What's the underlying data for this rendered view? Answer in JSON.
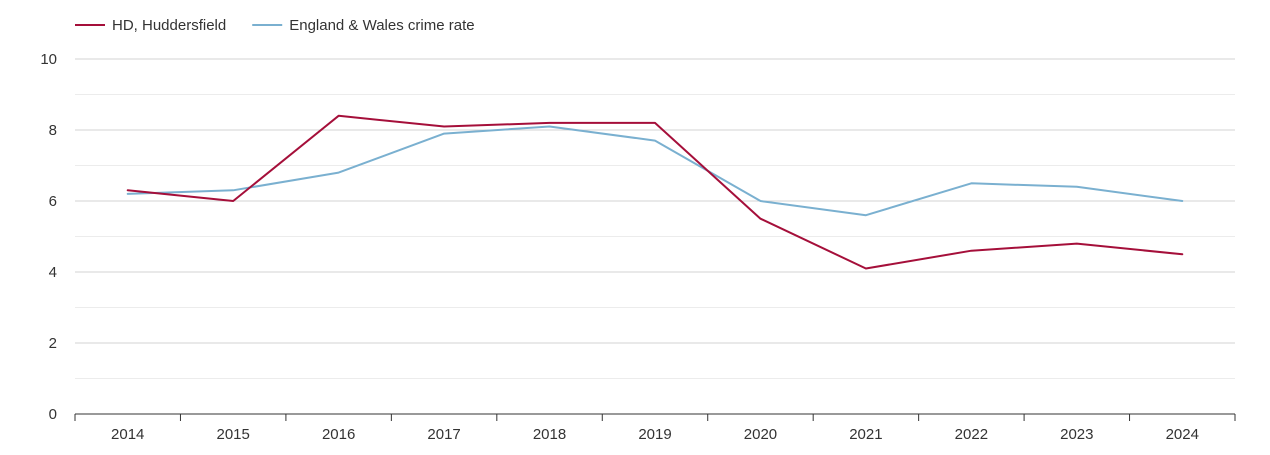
{
  "chart_data": {
    "type": "line",
    "title": "",
    "xlabel": "",
    "ylabel": "",
    "categories": [
      "2014",
      "2015",
      "2016",
      "2017",
      "2018",
      "2019",
      "2020",
      "2021",
      "2022",
      "2023",
      "2024"
    ],
    "ylim": [
      0,
      10
    ],
    "yticks": [
      "0",
      "2",
      "4",
      "6",
      "8",
      "10"
    ],
    "grid": true,
    "legend_position": "top-left",
    "series": [
      {
        "name": "HD, Huddersfield",
        "color": "#a50f3a",
        "values": [
          6.3,
          6.0,
          8.4,
          8.1,
          8.2,
          8.2,
          5.5,
          4.1,
          4.6,
          4.8,
          4.5
        ]
      },
      {
        "name": "England & Wales crime rate",
        "color": "#7ab0d0",
        "values": [
          6.2,
          6.3,
          6.8,
          7.9,
          8.1,
          7.7,
          6.0,
          5.6,
          6.5,
          6.4,
          6.0
        ]
      }
    ]
  }
}
